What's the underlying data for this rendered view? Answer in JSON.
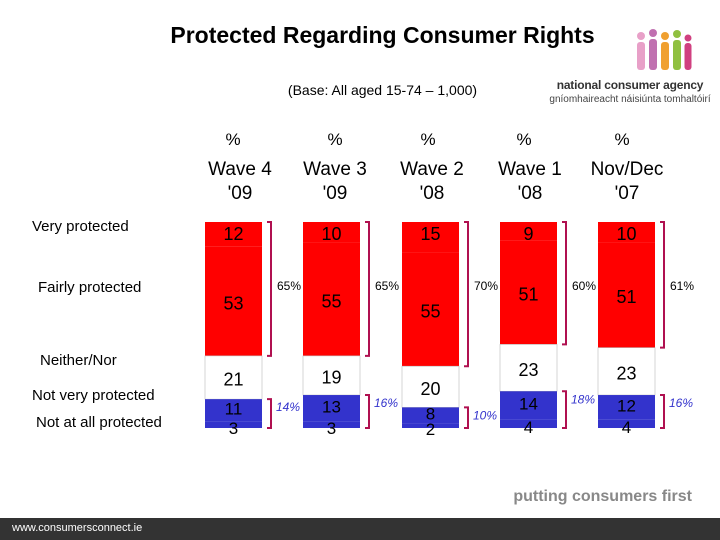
{
  "title": "Protected Regarding Consumer Rights",
  "subtitle": "(Base: All aged 15-74 – 1,000)",
  "logo": {
    "name": "national consumer agency",
    "irish": "gníomhaireacht náisiúnta tomhaltóirí"
  },
  "footer": {
    "tagline": "putting consumers first",
    "url": "www.consumersconnect.ie"
  },
  "colors": {
    "very": "#ff0000",
    "fairly": "#ff0000",
    "neither": "#ffffff",
    "notvery": "#3333cc",
    "notatall": "#3333cc",
    "bracket": "#b01050"
  },
  "chart_data": {
    "type": "bar",
    "stacked": true,
    "title": "Protected Regarding Consumer Rights",
    "unit": "%",
    "categories": [
      {
        "pct": "%",
        "line1": "Wave 4",
        "line2": "'09"
      },
      {
        "pct": "%",
        "line1": "Wave 3",
        "line2": "'09"
      },
      {
        "pct": "%",
        "line1": "Wave 2",
        "line2": "'08"
      },
      {
        "pct": "%",
        "line1": "Wave 1",
        "line2": "'08"
      },
      {
        "pct": "%",
        "line1": "Nov/Dec",
        "line2": "'07"
      }
    ],
    "row_labels": [
      "Very protected",
      "Fairly protected",
      "Neither/Nor",
      "Not very protected",
      "Not at all protected"
    ],
    "series": [
      {
        "name": "Very protected",
        "values": [
          12,
          10,
          15,
          9,
          10
        ]
      },
      {
        "name": "Fairly protected",
        "values": [
          53,
          55,
          55,
          51,
          51
        ]
      },
      {
        "name": "Neither/Nor",
        "values": [
          21,
          19,
          20,
          23,
          23
        ]
      },
      {
        "name": "Not very protected",
        "values": [
          11,
          13,
          8,
          14,
          12
        ]
      },
      {
        "name": "Not at all protected",
        "values": [
          3,
          3,
          2,
          4,
          4
        ]
      }
    ],
    "protected_totals": [
      "65%",
      "65%",
      "70%",
      "60%",
      "61%"
    ],
    "not_protected_totals": [
      "14%",
      "16%",
      "10%",
      "18%",
      "16%"
    ]
  }
}
